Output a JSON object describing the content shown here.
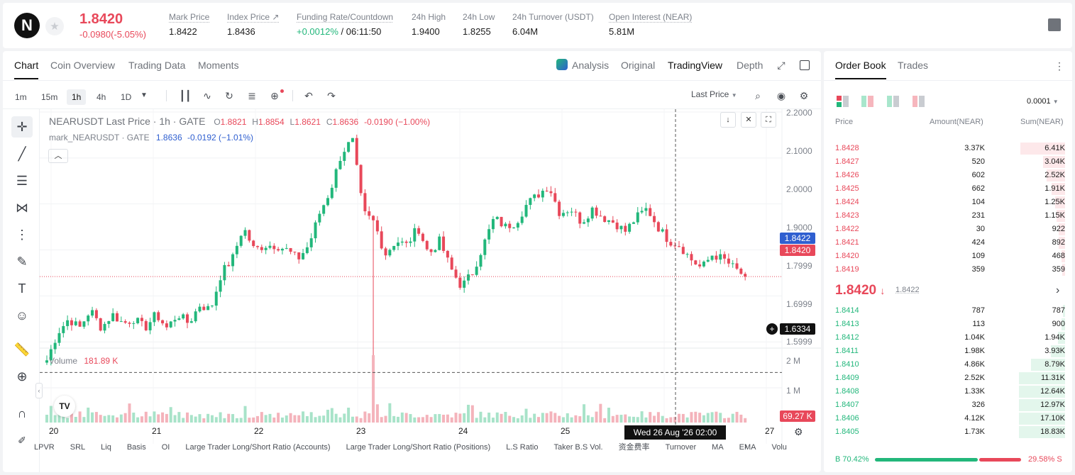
{
  "ticker": {
    "logo": "N",
    "price": "1.8420",
    "change": "-0.0980(-5.05%)",
    "stats": [
      {
        "label": "Mark Price",
        "value": "1.8422"
      },
      {
        "label": "Index Price ↗",
        "value": "1.8436"
      },
      {
        "label": "Funding Rate/Countdown",
        "value": "+0.0012%",
        "value2": "/ 06:11:50"
      },
      {
        "label": "24h High",
        "value": "1.9400"
      },
      {
        "label": "24h Low",
        "value": "1.8255"
      },
      {
        "label": "24h Turnover (USDT)",
        "value": "6.04M"
      },
      {
        "label": "Open Interest (NEAR)",
        "value": "5.81M"
      }
    ]
  },
  "chart_tabs": [
    "Chart",
    "Coin Overview",
    "Trading Data",
    "Moments"
  ],
  "chart_views": {
    "analysis": "Analysis",
    "original": "Original",
    "tradingview": "TradingView",
    "depth": "Depth"
  },
  "intervals": [
    "1m",
    "15m",
    "1h",
    "4h",
    "1D"
  ],
  "price_source": "Last Price",
  "legend": {
    "title": "NEARUSDT Last Price · 1h · GATE",
    "o_label": "O",
    "o": "1.8821",
    "h_label": "H",
    "h": "1.8854",
    "l_label": "L",
    "l": "1.8621",
    "c_label": "C",
    "c": "1.8636",
    "chg": "-0.0190 (−1.00%)",
    "mark_title": "mark_NEARUSDT · GATE",
    "mark_val": "1.8636",
    "mark_chg": "-0.0192 (−1.01%)"
  },
  "volume": {
    "label": "Volume",
    "value": "181.89 K",
    "last_tag": "69.27 K"
  },
  "price_tags": {
    "mark": "1.8422",
    "last": "1.8420",
    "cross": "1.6334"
  },
  "crosshair_time": "Wed 26 Aug '26   02:00",
  "indicators": [
    "LPVR",
    "SRL",
    "Liq",
    "Basis",
    "OI",
    "Large Trader Long/Short Ratio (Accounts)",
    "Large Trader Long/Short Ratio (Positions)",
    "L.S Ratio",
    "Taker B.S Vol.",
    "资金费率",
    "Turnover",
    "MA",
    "EMA",
    "Volu"
  ],
  "chart_data": {
    "type": "candlestick",
    "title": "NEARUSDT Last Price · 1h · GATE",
    "x_ticks": [
      "20",
      "21",
      "22",
      "23",
      "24",
      "25",
      "27"
    ],
    "y_ticks": [
      "2.2000",
      "2.1000",
      "2.0000",
      "1.9000",
      "1.7999",
      "1.6999",
      "1.5999"
    ],
    "ylim": [
      1.58,
      2.2
    ],
    "volume_ticks": [
      "2 M",
      "1 M"
    ],
    "close_path": [
      1.66,
      1.72,
      1.75,
      1.73,
      1.77,
      1.73,
      1.76,
      1.74,
      1.75,
      1.73,
      1.76,
      1.73,
      1.76,
      1.74,
      1.78,
      1.77,
      1.85,
      1.88,
      1.95,
      1.9,
      1.91,
      1.91,
      1.9,
      1.88,
      1.91,
      1.98,
      2.03,
      2.11,
      2.14,
      1.98,
      1.96,
      1.89,
      1.92,
      1.91,
      1.95,
      1.89,
      1.92,
      1.86,
      1.82,
      1.85,
      1.91,
      1.97,
      1.95,
      1.96,
      2.0,
      2.02,
      2.04,
      1.98,
      1.99,
      1.96,
      1.99,
      1.97,
      1.96,
      1.94,
      1.97,
      1.99,
      1.95,
      1.92,
      1.91,
      1.88,
      1.86,
      1.89,
      1.88,
      1.86,
      1.842
    ],
    "spike": {
      "index": 30,
      "low": 1.6334,
      "high": 2.0
    }
  },
  "orderbook": {
    "tabs": [
      "Order Book",
      "Trades"
    ],
    "precision": "0.0001",
    "headers": [
      "Price",
      "Amount(NEAR)",
      "Sum(NEAR)"
    ],
    "asks": [
      {
        "p": "1.8428",
        "a": "3.37K",
        "s": "6.41K",
        "d": 0.37
      },
      {
        "p": "1.8427",
        "a": "520",
        "s": "3.04K",
        "d": 0.18
      },
      {
        "p": "1.8426",
        "a": "602",
        "s": "2.52K",
        "d": 0.15
      },
      {
        "p": "1.8425",
        "a": "662",
        "s": "1.91K",
        "d": 0.11
      },
      {
        "p": "1.8424",
        "a": "104",
        "s": "1.25K",
        "d": 0.08
      },
      {
        "p": "1.8423",
        "a": "231",
        "s": "1.15K",
        "d": 0.07
      },
      {
        "p": "1.8422",
        "a": "30",
        "s": "922",
        "d": 0.055
      },
      {
        "p": "1.8421",
        "a": "424",
        "s": "892",
        "d": 0.052
      },
      {
        "p": "1.8420",
        "a": "109",
        "s": "468",
        "d": 0.03
      },
      {
        "p": "1.8419",
        "a": "359",
        "s": "359",
        "d": 0.022
      }
    ],
    "mid_price": "1.8420",
    "mid_arrow": "↓",
    "mid_mark": "1.8422",
    "bids": [
      {
        "p": "1.8414",
        "a": "787",
        "s": "787",
        "d": 0.02
      },
      {
        "p": "1.8413",
        "a": "113",
        "s": "900",
        "d": 0.03
      },
      {
        "p": "1.8412",
        "a": "1.04K",
        "s": "1.94K",
        "d": 0.06
      },
      {
        "p": "1.8411",
        "a": "1.98K",
        "s": "3.93K",
        "d": 0.12
      },
      {
        "p": "1.8410",
        "a": "4.86K",
        "s": "8.79K",
        "d": 0.28
      },
      {
        "p": "1.8409",
        "a": "2.52K",
        "s": "11.31K",
        "d": 0.38
      },
      {
        "p": "1.8408",
        "a": "1.33K",
        "s": "12.64K",
        "d": 0.38
      },
      {
        "p": "1.8407",
        "a": "326",
        "s": "12.97K",
        "d": 0.38
      },
      {
        "p": "1.8406",
        "a": "4.12K",
        "s": "17.10K",
        "d": 0.38
      },
      {
        "p": "1.8405",
        "a": "1.73K",
        "s": "18.83K",
        "d": 0.38
      }
    ],
    "buy_label": "B 70.42%",
    "sell_label": "29.58% S",
    "buy_ratio": 0.7042
  },
  "colors": {
    "up": "#22b77b",
    "down": "#e8485a",
    "mark": "#2f5fd0"
  }
}
